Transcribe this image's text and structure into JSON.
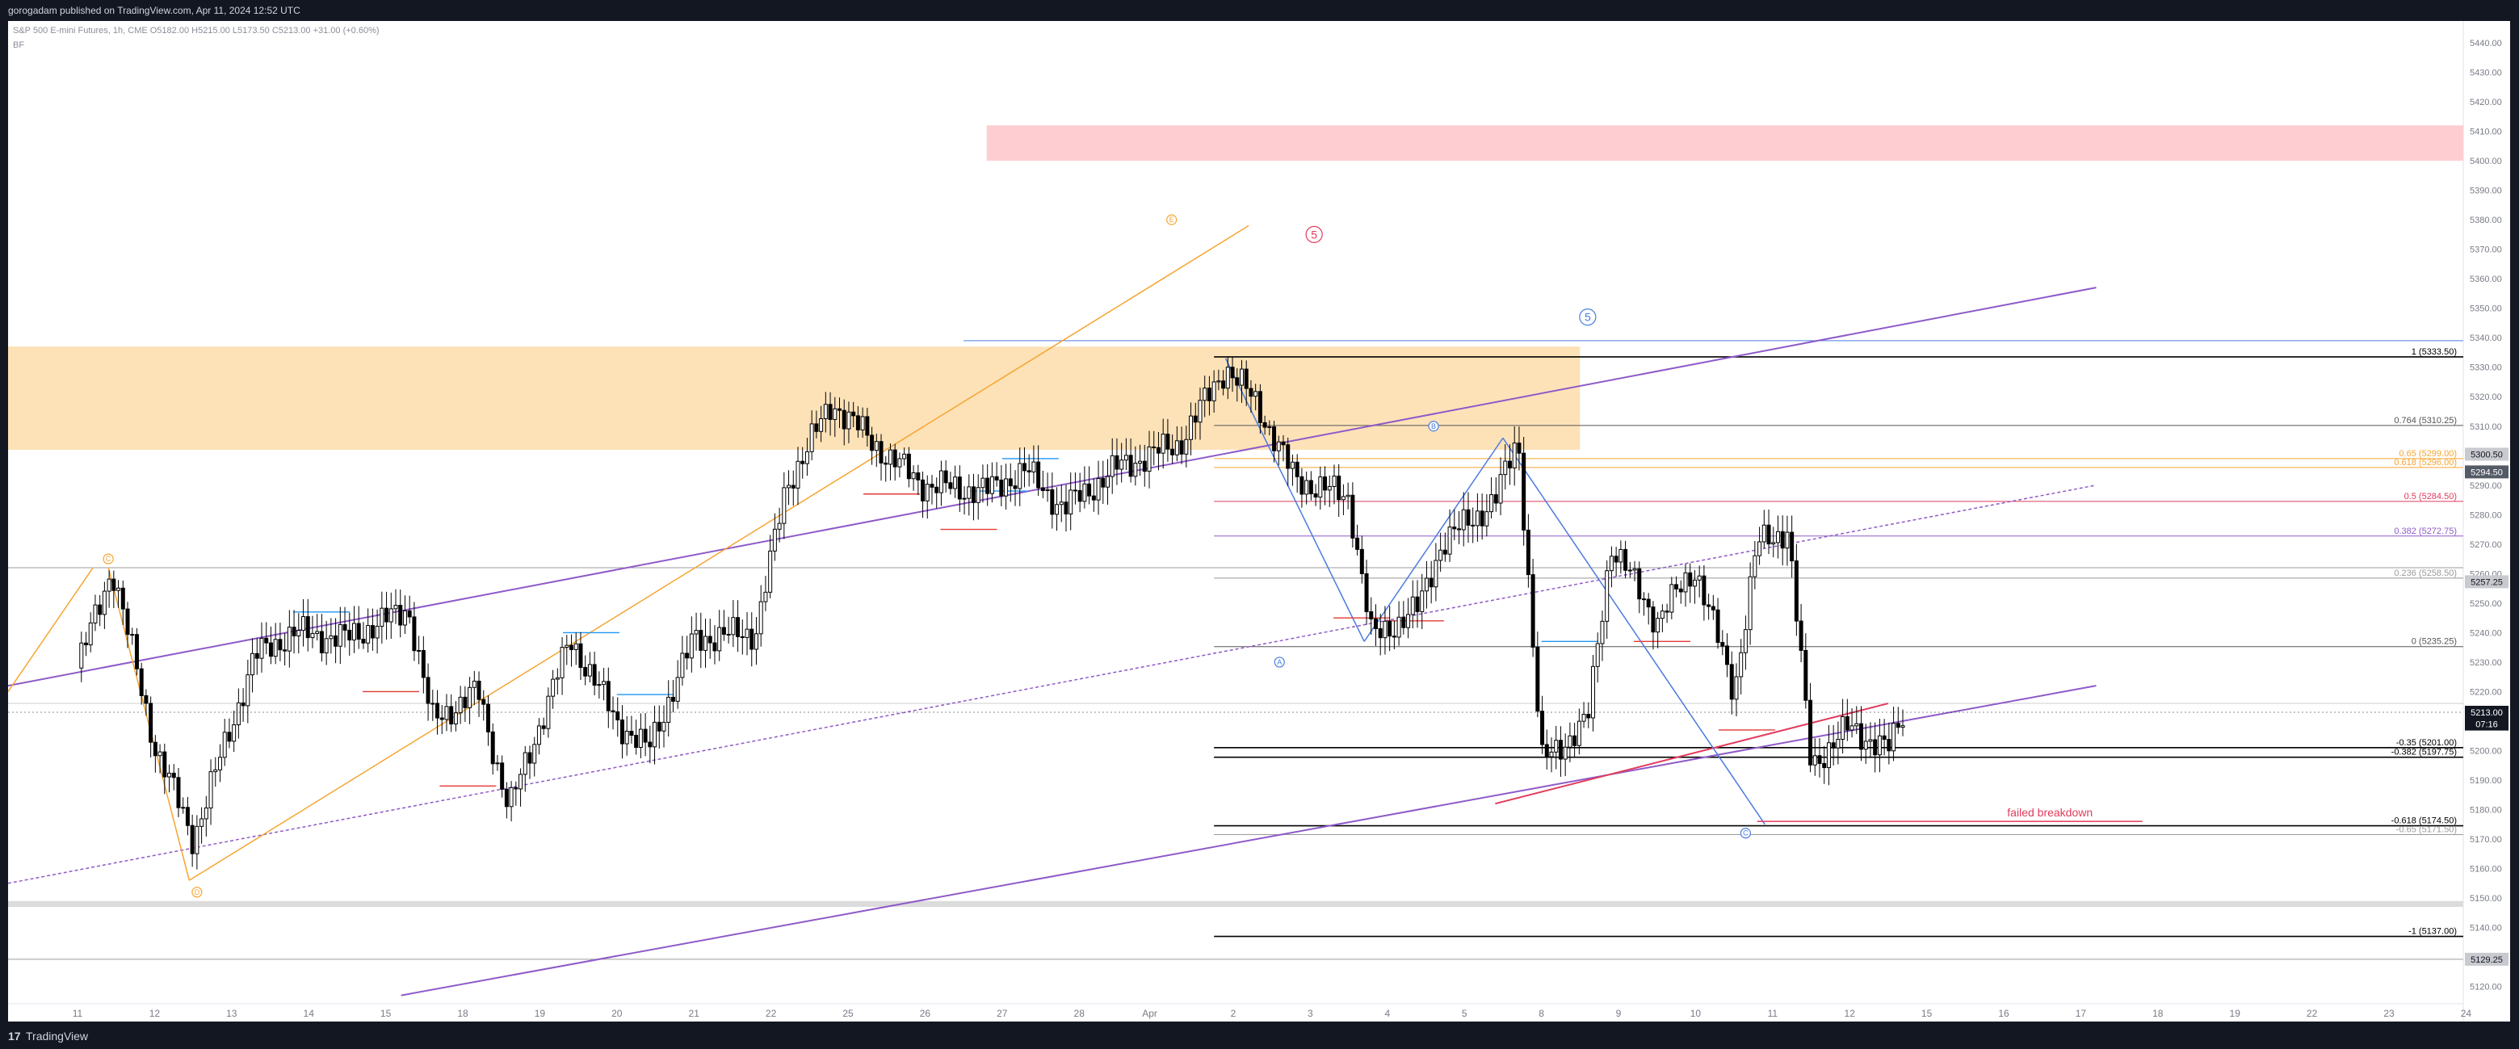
{
  "publish_line": "gorogadam published on TradingView.com, Apr 11, 2024 12:52 UTC",
  "symbol_line": "S&P 500 E-mini Futures, 1h, CME  O5182.00  H5215.00  L5173.50  C5213.00  +31.00 (+0.60%)",
  "symbol_sub": "BF",
  "footer_brand": "TradingView",
  "colors": {
    "background": "#ffffff",
    "frame": "#131722",
    "candle": "#000000",
    "orange_zone": "#fde2b8",
    "red_zone": "#fdcdd2",
    "purple_line": "#8e5ac8",
    "orange_line": "#f6a532",
    "blue_line": "#4a7be0",
    "red_line": "#e23a5c"
  },
  "chart_data": {
    "type": "candlestick",
    "y_axis_labels": [
      "5440.00",
      "5430.00",
      "5420.00",
      "5410.00",
      "5400.00",
      "5390.00",
      "5380.00",
      "5370.00",
      "5360.00",
      "5350.00",
      "5340.00",
      "5330.00",
      "5320.00",
      "5310.00",
      "5300.00",
      "5290.00",
      "5280.00",
      "5270.00",
      "5260.00",
      "5250.00",
      "5240.00",
      "5230.00",
      "5220.00",
      "5210.00",
      "5200.00",
      "5190.00",
      "5180.00",
      "5170.00",
      "5160.00",
      "5150.00",
      "5140.00",
      "5130.00",
      "5120.00"
    ],
    "x_axis_labels": [
      "11",
      "12",
      "13",
      "14",
      "15",
      "18",
      "19",
      "20",
      "21",
      "22",
      "25",
      "26",
      "27",
      "28",
      "Apr",
      "2",
      "3",
      "4",
      "5",
      "8",
      "9",
      "10",
      "11",
      "12",
      "15",
      "16",
      "17",
      "18",
      "19",
      "22",
      "23",
      "24"
    ],
    "price_labels": [
      {
        "text": "5300.50",
        "price": 5300.5,
        "style": "grey"
      },
      {
        "text": "5294.50",
        "price": 5294.5,
        "style": "dark"
      },
      {
        "text": "5257.25",
        "price": 5257.25,
        "style": "grey"
      },
      {
        "text": "5213.00",
        "price": 5213.0,
        "style": "last"
      },
      {
        "text": "07:16",
        "price": 5209.0,
        "style": "last"
      },
      {
        "text": "5129.25",
        "price": 5129.25,
        "style": "grey"
      }
    ],
    "fib_levels": [
      {
        "text": "1 (5333.50)",
        "price": 5333.5,
        "color": "#000000"
      },
      {
        "text": "0.764 (5310.25)",
        "price": 5310.25,
        "color": "#555555"
      },
      {
        "text": "0.65 (5299.00)",
        "price": 5299.0,
        "color": "#f6a532"
      },
      {
        "text": "0.618 (5296.00)",
        "price": 5296.0,
        "color": "#f6a532"
      },
      {
        "text": "0.5 (5284.50)",
        "price": 5284.5,
        "color": "#e23a5c"
      },
      {
        "text": "0.382 (5272.75)",
        "price": 5272.75,
        "color": "#8e5ac8"
      },
      {
        "text": "0.236 (5258.50)",
        "price": 5258.5,
        "color": "#999999"
      },
      {
        "text": "0 (5235.25)",
        "price": 5235.25,
        "color": "#555555"
      },
      {
        "text": "-0.35 (5201.00)",
        "price": 5201.0,
        "color": "#000000"
      },
      {
        "text": "-0.382 (5197.75)",
        "price": 5197.75,
        "color": "#000000"
      },
      {
        "text": "-0.618 (5174.50)",
        "price": 5174.5,
        "color": "#000000"
      },
      {
        "text": "-0.65 (5171.50)",
        "price": 5171.5,
        "color": "#999999"
      },
      {
        "text": "-1 (5137.00)",
        "price": 5137.0,
        "color": "#000000"
      }
    ],
    "wave_labels": [
      {
        "text": "C",
        "color": "#f6a532",
        "x": 0.4,
        "price": 5265
      },
      {
        "text": "D",
        "color": "#f6a532",
        "x": 1.55,
        "price": 5152
      },
      {
        "text": "E",
        "color": "#f6a532",
        "x": 14.2,
        "price": 5380
      },
      {
        "text": "5",
        "color": "#e23a5c",
        "x": 16.05,
        "price": 5375
      },
      {
        "text": "5",
        "color": "#4a7be0",
        "x": 19.6,
        "price": 5347
      },
      {
        "text": "A",
        "color": "#4a7be0",
        "x": 15.6,
        "price": 5230
      },
      {
        "text": "B",
        "color": "#4a7be0",
        "x": 17.6,
        "price": 5310
      },
      {
        "text": "C",
        "color": "#4a7be0",
        "x": 21.65,
        "price": 5172
      }
    ],
    "annotation": "failed breakdown"
  }
}
